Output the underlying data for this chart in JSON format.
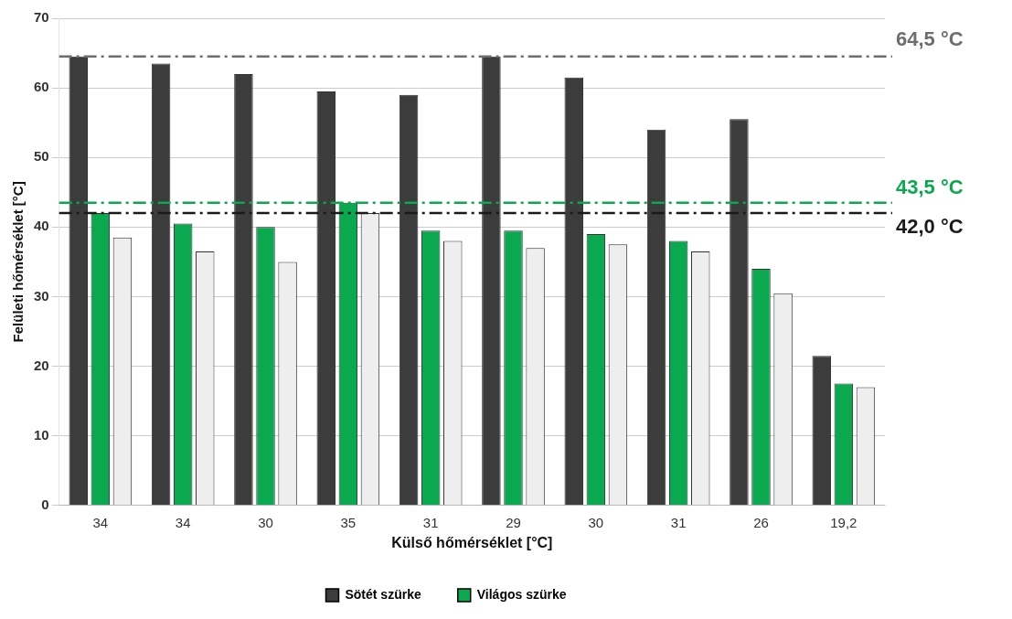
{
  "chart_data": {
    "type": "bar",
    "xlabel": "Külső hőmérséklet [°C]",
    "ylabel": "Felületi hőmérséklet [°C]",
    "categories": [
      "34",
      "34",
      "30",
      "35",
      "31",
      "29",
      "30",
      "31",
      "26",
      "19,2"
    ],
    "series": [
      {
        "name": "Sötét szürke",
        "color": "#3c3c3c",
        "values": [
          64.5,
          63.5,
          62,
          59.5,
          59,
          64.5,
          61.5,
          54,
          55.5,
          21.5
        ]
      },
      {
        "name": "Világos szürke",
        "color": "#0aa84f",
        "values": [
          42,
          40.5,
          40,
          43.5,
          39.5,
          39.5,
          39,
          38,
          34,
          17.5
        ]
      },
      {
        "color": "#eeeeee",
        "values": [
          38.5,
          36.5,
          35,
          42,
          38,
          37,
          37.5,
          36.5,
          30.5,
          17
        ]
      }
    ],
    "ylim": [
      0,
      70
    ],
    "yticks": [
      0,
      10,
      20,
      30,
      40,
      50,
      60,
      70
    ],
    "grid": "y",
    "legend": "bottom",
    "ref_lines": [
      {
        "axis": "y",
        "value": 64.5,
        "label": "64,5 °C",
        "color": "#6e6e6e",
        "line_style": "dashed"
      },
      {
        "axis": "y",
        "value": 43.5,
        "label": "43,5 °C",
        "color": "#0aa84f",
        "line_style": "dashed"
      },
      {
        "axis": "y",
        "value": 42,
        "label": "42,0 °C",
        "color": "#1a1a1a",
        "line_style": "dashed"
      }
    ]
  }
}
